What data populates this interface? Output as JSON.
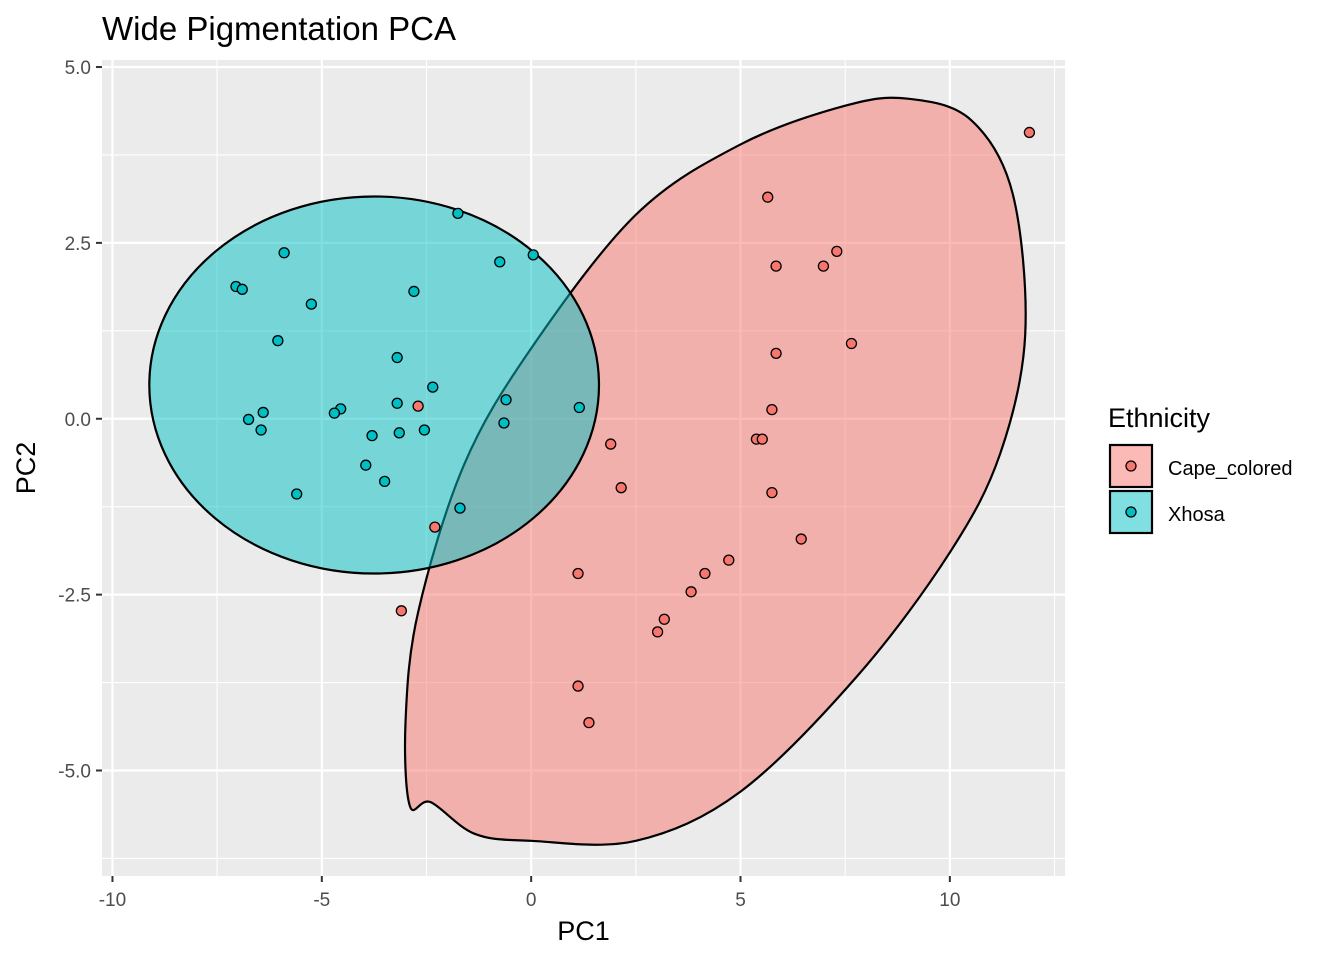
{
  "chart_data": {
    "type": "scatter",
    "title": "Wide Pigmentation PCA",
    "xlabel": "PC1",
    "ylabel": "PC2",
    "xlim": [
      -10.25,
      12.75
    ],
    "ylim": [
      -6.5,
      5.1
    ],
    "x_ticks": [
      -10,
      -5,
      0,
      5,
      10
    ],
    "x_tick_labels": [
      "-10",
      "-5",
      "0",
      "5",
      "10"
    ],
    "y_ticks": [
      -5,
      -2.5,
      0,
      2.5,
      5
    ],
    "y_tick_labels": [
      "-5.0",
      "-2.5",
      "0.0",
      "2.5",
      "5.0"
    ],
    "grid": true,
    "legend": {
      "title": "Ethnicity",
      "placement": "right",
      "entries": [
        "Cape_colored",
        "Xhosa"
      ]
    },
    "series": [
      {
        "name": "Cape_colored",
        "color": "#F8766D",
        "points": [
          [
            11.9,
            4.07
          ],
          [
            5.65,
            3.15
          ],
          [
            7.3,
            2.38
          ],
          [
            5.85,
            2.17
          ],
          [
            6.98,
            2.17
          ],
          [
            7.65,
            1.07
          ],
          [
            5.85,
            0.93
          ],
          [
            5.75,
            0.13
          ],
          [
            5.38,
            -0.29
          ],
          [
            5.52,
            -0.29
          ],
          [
            -2.7,
            0.18
          ],
          [
            1.9,
            -0.36
          ],
          [
            2.15,
            -0.98
          ],
          [
            5.75,
            -1.05
          ],
          [
            6.45,
            -1.71
          ],
          [
            4.72,
            -2.01
          ],
          [
            4.15,
            -2.2
          ],
          [
            3.82,
            -2.46
          ],
          [
            3.18,
            -2.85
          ],
          [
            3.02,
            -3.03
          ],
          [
            1.12,
            -2.2
          ],
          [
            -2.3,
            -1.54
          ],
          [
            -3.1,
            -2.73
          ],
          [
            1.12,
            -3.8
          ],
          [
            1.38,
            -4.32
          ]
        ],
        "ellipse": {
          "polygon": [
            [
              -2.9,
              -5.5
            ],
            [
              -3.0,
              -4.3
            ],
            [
              -2.7,
              -2.75
            ],
            [
              -1.6,
              -0.65
            ],
            [
              0,
              1.0
            ],
            [
              2.5,
              2.9
            ],
            [
              5.0,
              3.9
            ],
            [
              7.5,
              4.45
            ],
            [
              9.0,
              4.55
            ],
            [
              10.5,
              4.25
            ],
            [
              11.5,
              3.2
            ],
            [
              11.8,
              1.2
            ],
            [
              11.2,
              -0.5
            ],
            [
              10.0,
              -1.9
            ],
            [
              7.8,
              -3.65
            ],
            [
              5.0,
              -5.3
            ],
            [
              2.5,
              -6.0
            ],
            [
              0,
              -6.0
            ],
            [
              -1.35,
              -5.9
            ],
            [
              -2.4,
              -5.45
            ]
          ]
        }
      },
      {
        "name": "Xhosa",
        "color": "#00BFC4",
        "points": [
          [
            -1.75,
            2.92
          ],
          [
            0.05,
            2.33
          ],
          [
            -5.9,
            2.36
          ],
          [
            -0.75,
            2.23
          ],
          [
            -7.05,
            1.88
          ],
          [
            -6.9,
            1.84
          ],
          [
            -2.8,
            1.81
          ],
          [
            -5.25,
            1.63
          ],
          [
            -6.05,
            1.11
          ],
          [
            -3.2,
            0.87
          ],
          [
            -2.35,
            0.45
          ],
          [
            -0.6,
            0.27
          ],
          [
            1.15,
            0.16
          ],
          [
            -3.2,
            0.22
          ],
          [
            -4.55,
            0.14
          ],
          [
            -4.7,
            0.08
          ],
          [
            -6.4,
            0.09
          ],
          [
            -6.75,
            -0.01
          ],
          [
            -6.45,
            -0.16
          ],
          [
            -0.65,
            -0.06
          ],
          [
            -2.55,
            -0.16
          ],
          [
            -3.15,
            -0.2
          ],
          [
            -3.8,
            -0.24
          ],
          [
            -3.95,
            -0.66
          ],
          [
            -3.5,
            -0.89
          ],
          [
            -5.6,
            -1.07
          ],
          [
            -1.7,
            -1.27
          ]
        ],
        "ellipse": {
          "cx": -3.75,
          "cy": 0.48,
          "rx": 5.37,
          "ry": 2.68
        }
      }
    ]
  }
}
